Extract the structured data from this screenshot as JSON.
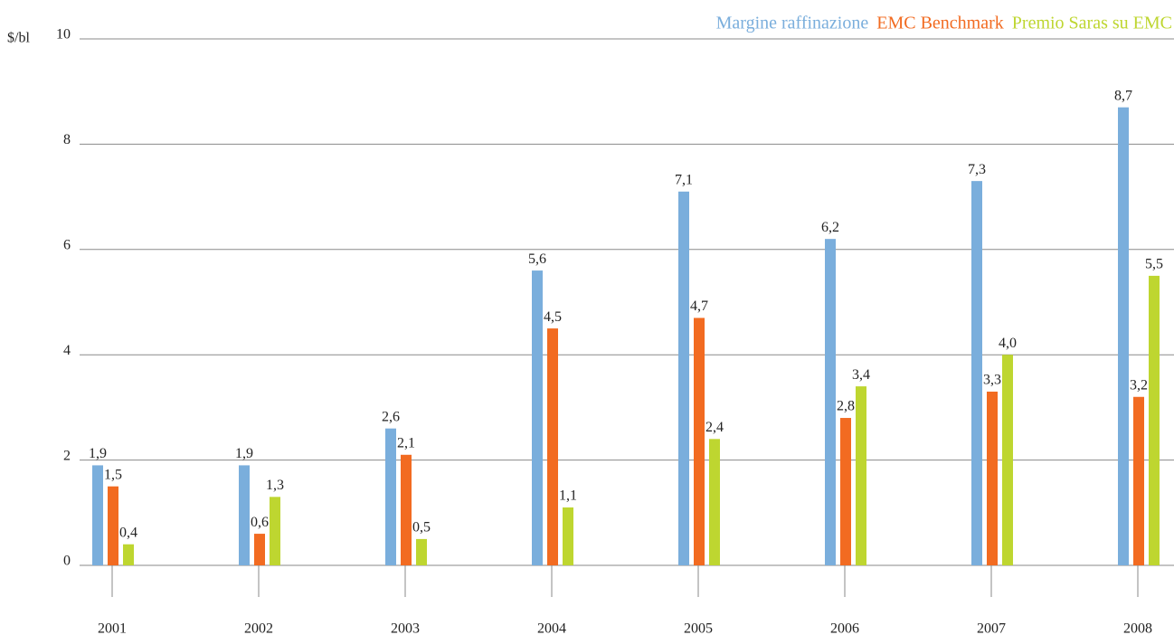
{
  "chart_data": {
    "type": "bar",
    "y_unit": "$/bl",
    "categories": [
      "2001",
      "2002",
      "2003",
      "2004",
      "2005",
      "2006",
      "2007",
      "2008"
    ],
    "series": [
      {
        "name": "Margine raffinazione",
        "color": "#7aaedc",
        "values": [
          1.9,
          1.9,
          2.6,
          5.6,
          7.1,
          6.2,
          7.3,
          8.7
        ],
        "value_labels": [
          "1,9",
          "1,9",
          "2,6",
          "5,6",
          "7,1",
          "6,2",
          "7,3",
          "8,7"
        ]
      },
      {
        "name": "EMC Benchmark",
        "color": "#f26b21",
        "values": [
          1.5,
          0.6,
          2.1,
          4.5,
          4.7,
          2.8,
          3.3,
          3.2
        ],
        "value_labels": [
          "1,5",
          "0,6",
          "2,1",
          "4,5",
          "4,7",
          "2,8",
          "3,3",
          "3,2"
        ]
      },
      {
        "name": "Premio Saras su EMC",
        "color": "#bed630",
        "values": [
          0.4,
          1.3,
          0.5,
          1.1,
          2.4,
          3.4,
          4.0,
          5.5
        ],
        "value_labels": [
          "0,4",
          "1,3",
          "0,5",
          "1,1",
          "2,4",
          "3,4",
          "4,0",
          "5,5"
        ]
      }
    ],
    "ylim": [
      0,
      10
    ],
    "yticks": [
      0,
      2,
      4,
      6,
      8,
      10
    ],
    "grid": true,
    "legend": "top-right"
  }
}
